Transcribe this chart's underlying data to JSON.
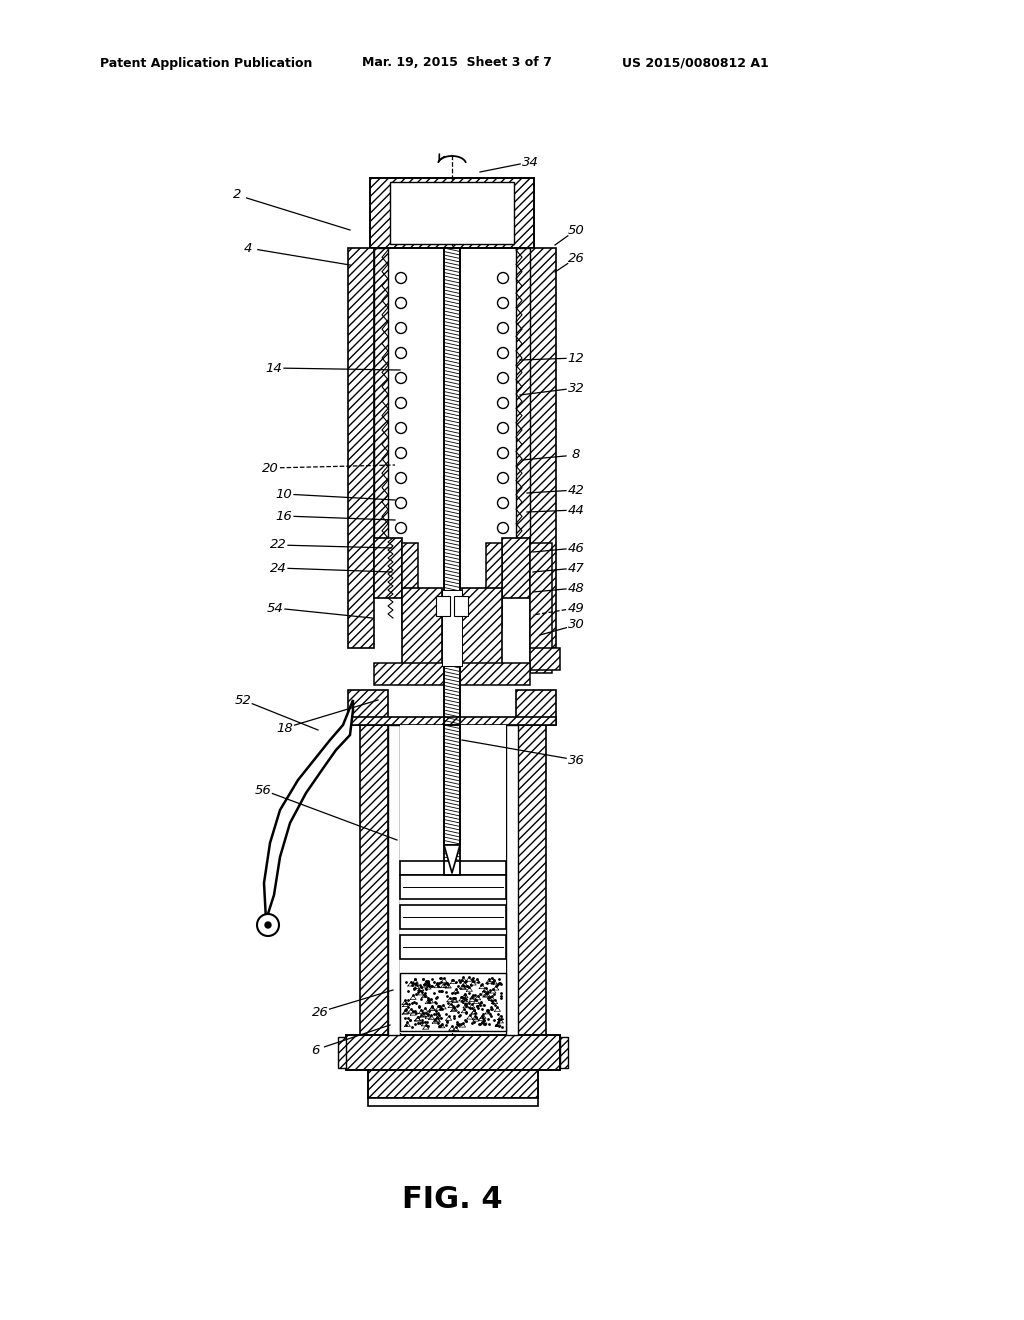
{
  "header_left": "Patent Application Publication",
  "header_mid": "Mar. 19, 2015  Sheet 3 of 7",
  "header_right": "US 2015/0080812 A1",
  "fig_label": "FIG. 4",
  "bg_color": "#ffffff"
}
